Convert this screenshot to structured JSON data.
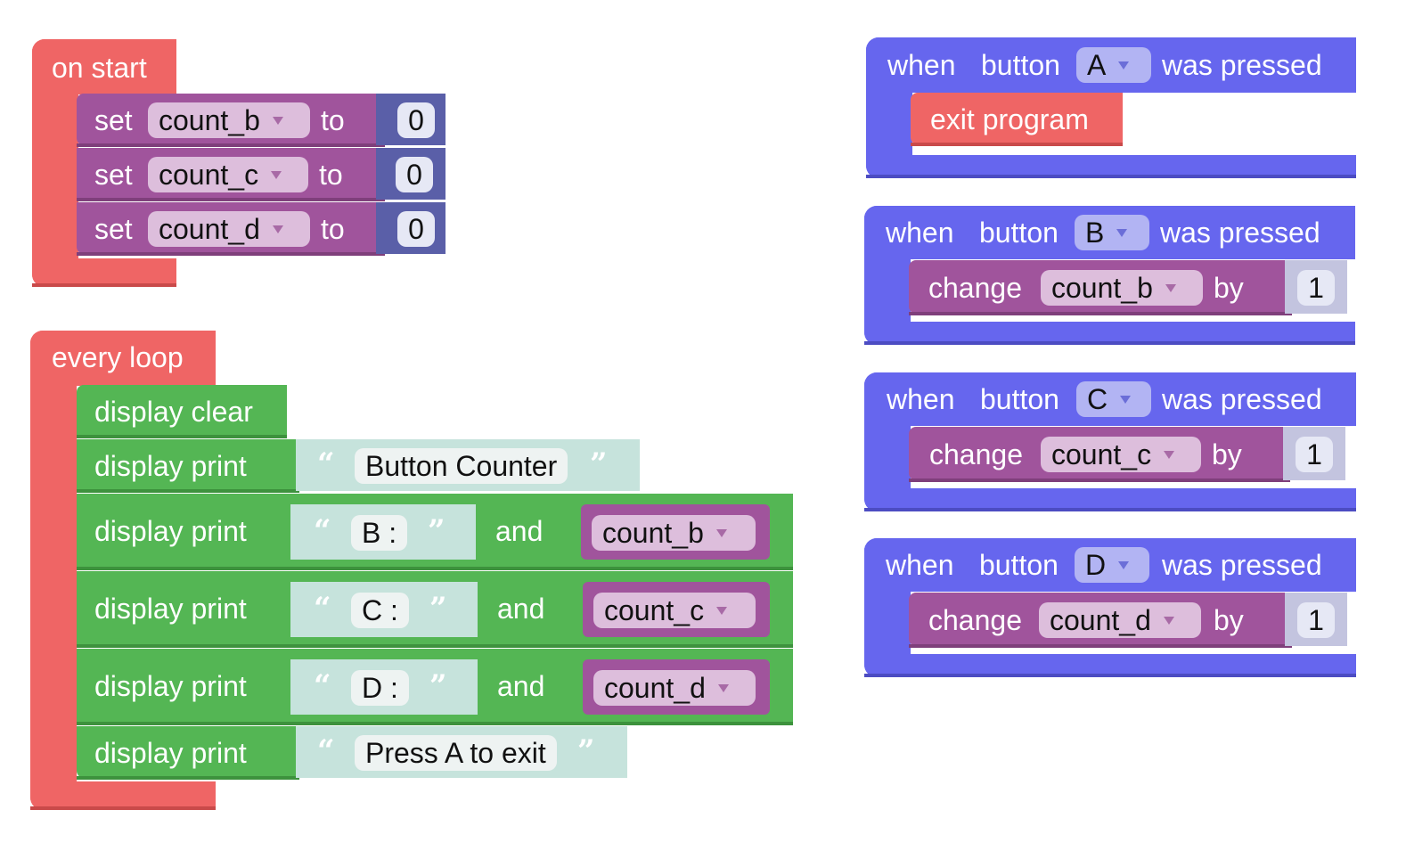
{
  "on_start": {
    "hat_label": "on start",
    "rows": [
      {
        "keyword": "set",
        "variable": "count_b",
        "to_label": "to",
        "value": "0"
      },
      {
        "keyword": "set",
        "variable": "count_c",
        "to_label": "to",
        "value": "0"
      },
      {
        "keyword": "set",
        "variable": "count_d",
        "to_label": "to",
        "value": "0"
      }
    ]
  },
  "every_loop": {
    "hat_label": "every loop",
    "clear_label": "display clear",
    "print_rows": [
      {
        "label": "display print",
        "text": "Button Counter"
      },
      {
        "label": "display print",
        "text": "B :",
        "and_label": "and",
        "variable": "count_b"
      },
      {
        "label": "display print",
        "text": "C :",
        "and_label": "and",
        "variable": "count_c"
      },
      {
        "label": "display print",
        "text": "D :",
        "and_label": "and",
        "variable": "count_d"
      },
      {
        "label": "display print",
        "text": "Press A to exit"
      }
    ]
  },
  "button_events": [
    {
      "when_label": "when",
      "button_label": "button",
      "button": "A",
      "pressed_label": "was pressed",
      "action": "exit program"
    },
    {
      "when_label": "when",
      "button_label": "button",
      "button": "B",
      "pressed_label": "was pressed",
      "change_label": "change",
      "variable": "count_b",
      "by_label": "by",
      "value": "1"
    },
    {
      "when_label": "when",
      "button_label": "button",
      "button": "C",
      "pressed_label": "was pressed",
      "change_label": "change",
      "variable": "count_c",
      "by_label": "by",
      "value": "1"
    },
    {
      "when_label": "when",
      "button_label": "button",
      "button": "D",
      "pressed_label": "was pressed",
      "change_label": "change",
      "variable": "count_d",
      "by_label": "by",
      "value": "1"
    }
  ],
  "colors": {
    "event_hat": "#ef6565",
    "button_hat": "#6666ee",
    "variables": "#a0549c",
    "display": "#54b654",
    "number": "#5a5fa8"
  }
}
